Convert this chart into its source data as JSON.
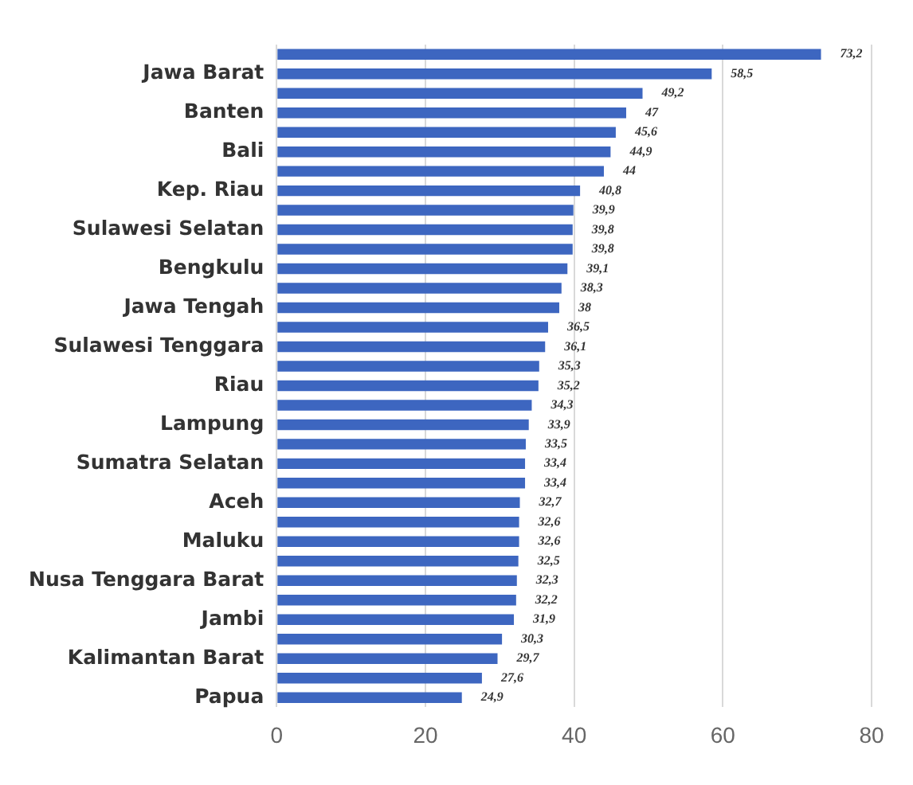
{
  "chart_data": {
    "type": "bar",
    "orientation": "horizontal",
    "categories": [
      null,
      "Jawa Barat",
      null,
      "Banten",
      null,
      "Bali",
      null,
      "Kep. Riau",
      null,
      "Sulawesi Selatan",
      null,
      "Bengkulu",
      null,
      "Jawa Tengah",
      null,
      "Sulawesi Tenggara",
      null,
      "Riau",
      null,
      "Lampung",
      null,
      "Sumatra Selatan",
      null,
      "Aceh",
      null,
      "Maluku",
      null,
      "Nusa Tenggara Barat",
      null,
      "Jambi",
      null,
      "Kalimantan Barat",
      null,
      "Papua"
    ],
    "values": [
      73.2,
      58.5,
      49.2,
      47,
      45.6,
      44.9,
      44,
      40.8,
      39.9,
      39.8,
      39.8,
      39.1,
      38.3,
      38,
      36.5,
      36.1,
      35.3,
      35.2,
      34.3,
      33.9,
      33.5,
      33.4,
      33.4,
      32.7,
      32.6,
      32.6,
      32.5,
      32.3,
      32.2,
      31.9,
      30.3,
      29.7,
      27.6,
      24.9
    ],
    "value_labels": [
      "73,2",
      "58,5",
      "49,2",
      "47",
      "45,6",
      "44,9",
      "44",
      "40,8",
      "39,9",
      "39,8",
      "39,8",
      "39,1",
      "38,3",
      "38",
      "36,5",
      "36,1",
      "35,3",
      "35,2",
      "34,3",
      "33,9",
      "33,5",
      "33,4",
      "33,4",
      "32,7",
      "32,6",
      "32,6",
      "32,5",
      "32,3",
      "32,2",
      "31,9",
      "30,3",
      "29,7",
      "27,6",
      "24,9"
    ],
    "color": "#3d66c0",
    "xlim": [
      0,
      80
    ],
    "xticks": [
      0,
      20,
      40,
      60,
      80
    ],
    "grid": "x",
    "legend": false
  }
}
